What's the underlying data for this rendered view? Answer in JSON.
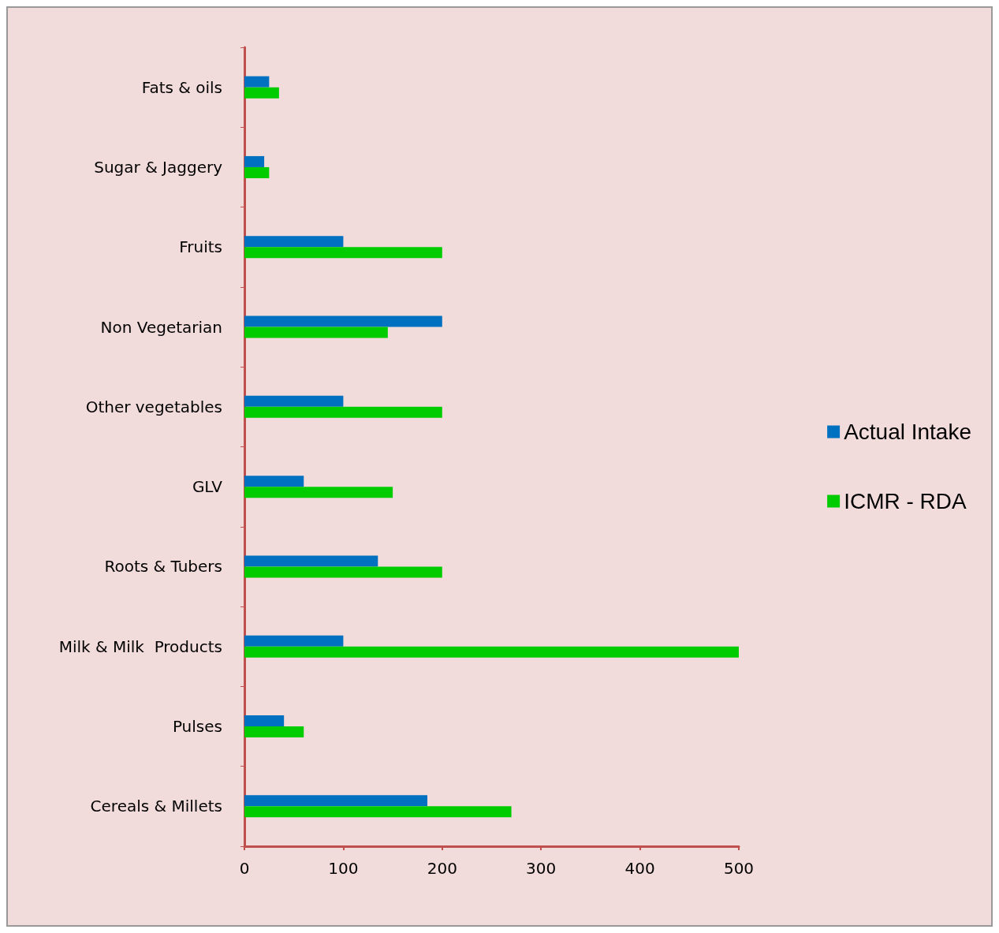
{
  "chart_data": {
    "type": "bar",
    "orientation": "horizontal",
    "categories": [
      "Fats & oils",
      "Sugar & Jaggery",
      "Fruits",
      "Non Vegetarian",
      "Other vegetables",
      "GLV",
      "Roots & Tubers",
      "Milk & Milk  Products",
      "Pulses",
      "Cereals & Millets"
    ],
    "series": [
      {
        "name": "Actual Intake",
        "color": "#0070c0",
        "values": [
          25,
          20,
          100,
          200,
          100,
          60,
          135,
          100,
          40,
          185
        ]
      },
      {
        "name": "ICMR - RDA",
        "color": "#00cc00",
        "values": [
          35,
          25,
          200,
          145,
          200,
          150,
          200,
          500,
          60,
          270
        ]
      }
    ],
    "xlim": [
      0,
      500
    ],
    "xticks": [
      0,
      100,
      200,
      300,
      400,
      500
    ],
    "grid": false,
    "legend": "right"
  }
}
